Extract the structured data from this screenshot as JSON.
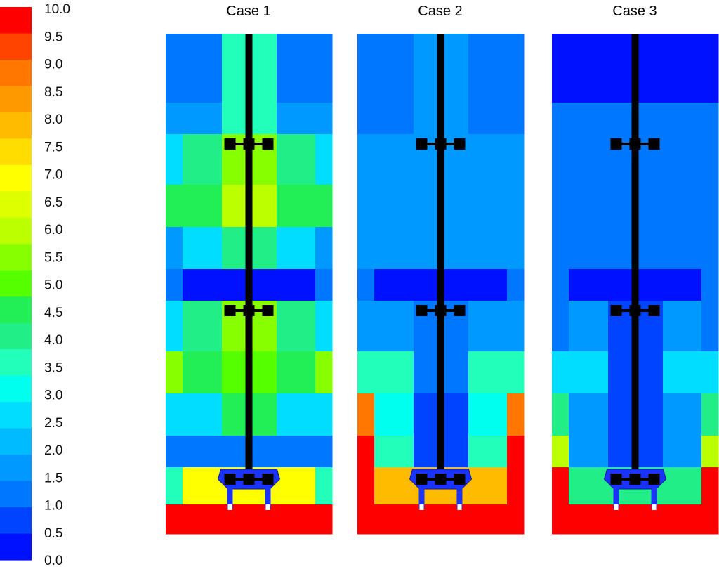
{
  "legend": {
    "ticks": [
      "10.0",
      "9.5",
      "9.0",
      "8.5",
      "8.0",
      "7.5",
      "7.0",
      "6.5",
      "6.0",
      "5.5",
      "5.0",
      "4.5",
      "4.0",
      "3.5",
      "3.0",
      "2.5",
      "2.0",
      "1.5",
      "1.0",
      "0.5",
      "0.0"
    ],
    "colors_top_to_bottom": [
      "#ff0000",
      "#ff4400",
      "#ff7700",
      "#ff9900",
      "#ffbb00",
      "#ffdd00",
      "#ffff00",
      "#ddff00",
      "#bbff00",
      "#88ff00",
      "#55ff00",
      "#22ee55",
      "#22ee88",
      "#22ffbb",
      "#00ffee",
      "#00ddff",
      "#00bbff",
      "#0099ff",
      "#0077ff",
      "#0044ff",
      "#0011ff"
    ]
  },
  "cases": [
    {
      "title": "Case 1",
      "columns": [
        [
          "#0077ff",
          "#0099ff",
          "#00ddff",
          "#22ee55",
          "#0099ff",
          "#0077ff",
          "#00ddff",
          "#88ff00",
          "#00ddff",
          "#0077ff",
          "#22ffbb",
          "#ff0000"
        ],
        [
          "#0077ff",
          "#0099ff",
          "#22ee88",
          "#22ee55",
          "#00ddff",
          "#0011ff",
          "#22ee88",
          "#22ee55",
          "#00ddff",
          "#0077ff",
          "#ffff00",
          "#ff0000"
        ],
        [
          "#22ffbb",
          "#22ffbb",
          "#88ff00",
          "#bbff00",
          "#22ee88",
          "#0011ff",
          "#88ff00",
          "#55ff00",
          "#22ee55",
          "#0077ff",
          "#ffff00",
          "#ff0000"
        ],
        [
          "#22ffbb",
          "#22ffbb",
          "#88ff00",
          "#bbff00",
          "#22ee88",
          "#0011ff",
          "#88ff00",
          "#55ff00",
          "#22ee55",
          "#0077ff",
          "#ffff00",
          "#ff0000"
        ],
        [
          "#0077ff",
          "#0099ff",
          "#22ee88",
          "#22ee55",
          "#00ddff",
          "#0011ff",
          "#22ee88",
          "#22ee55",
          "#00ddff",
          "#0077ff",
          "#ffff00",
          "#ff0000"
        ],
        [
          "#0077ff",
          "#0099ff",
          "#00ddff",
          "#22ee55",
          "#0099ff",
          "#0077ff",
          "#00ddff",
          "#88ff00",
          "#00ddff",
          "#0077ff",
          "#22ffbb",
          "#ff0000"
        ]
      ]
    },
    {
      "title": "Case 2",
      "columns": [
        [
          "#0077ff",
          "#0077ff",
          "#0099ff",
          "#0099ff",
          "#0099ff",
          "#0077ff",
          "#0099ff",
          "#22ffbb",
          "#ff7700",
          "#ff0000",
          "#ff0000",
          "#ff0000"
        ],
        [
          "#0077ff",
          "#0077ff",
          "#0099ff",
          "#0099ff",
          "#0099ff",
          "#0011ff",
          "#0099ff",
          "#22ffbb",
          "#00ffee",
          "#22ffbb",
          "#ffbb00",
          "#ff0000"
        ],
        [
          "#0099ff",
          "#0099ff",
          "#0099ff",
          "#0099ff",
          "#0099ff",
          "#0011ff",
          "#0077ff",
          "#0077ff",
          "#0044ff",
          "#0044ff",
          "#ffbb00",
          "#ff0000"
        ],
        [
          "#0099ff",
          "#0099ff",
          "#0099ff",
          "#0099ff",
          "#0099ff",
          "#0011ff",
          "#0077ff",
          "#0077ff",
          "#0044ff",
          "#0044ff",
          "#ffbb00",
          "#ff0000"
        ],
        [
          "#0077ff",
          "#0077ff",
          "#0099ff",
          "#0099ff",
          "#0099ff",
          "#0011ff",
          "#0099ff",
          "#22ffbb",
          "#00ffee",
          "#22ffbb",
          "#ffbb00",
          "#ff0000"
        ],
        [
          "#0077ff",
          "#0077ff",
          "#0099ff",
          "#0099ff",
          "#0099ff",
          "#0077ff",
          "#0099ff",
          "#22ffbb",
          "#ff7700",
          "#ff0000",
          "#ff0000",
          "#ff0000"
        ]
      ]
    },
    {
      "title": "Case 3",
      "columns": [
        [
          "#0011ff",
          "#0077ff",
          "#0077ff",
          "#0077ff",
          "#0077ff",
          "#0077ff",
          "#0077ff",
          "#00ddff",
          "#22ee88",
          "#bbff00",
          "#ff0000",
          "#ff0000"
        ],
        [
          "#0011ff",
          "#0077ff",
          "#0077ff",
          "#0077ff",
          "#0077ff",
          "#0011ff",
          "#0099ff",
          "#00ddff",
          "#0099ff",
          "#0099ff",
          "#22ee88",
          "#ff0000"
        ],
        [
          "#0011ff",
          "#0077ff",
          "#0077ff",
          "#0077ff",
          "#0077ff",
          "#0011ff",
          "#0044ff",
          "#0044ff",
          "#0044ff",
          "#0044ff",
          "#22ee88",
          "#ff0000"
        ],
        [
          "#0011ff",
          "#0077ff",
          "#0077ff",
          "#0077ff",
          "#0077ff",
          "#0011ff",
          "#0044ff",
          "#0044ff",
          "#0044ff",
          "#0044ff",
          "#22ee88",
          "#ff0000"
        ],
        [
          "#0011ff",
          "#0077ff",
          "#0077ff",
          "#0077ff",
          "#0077ff",
          "#0011ff",
          "#0099ff",
          "#00ddff",
          "#0099ff",
          "#0099ff",
          "#22ee88",
          "#ff0000"
        ],
        [
          "#0011ff",
          "#0077ff",
          "#0077ff",
          "#0077ff",
          "#0077ff",
          "#0077ff",
          "#0077ff",
          "#00ddff",
          "#22ee88",
          "#bbff00",
          "#ff0000",
          "#ff0000"
        ]
      ]
    }
  ],
  "impeller_rows": [
    "upper",
    "middle",
    "bottom"
  ]
}
